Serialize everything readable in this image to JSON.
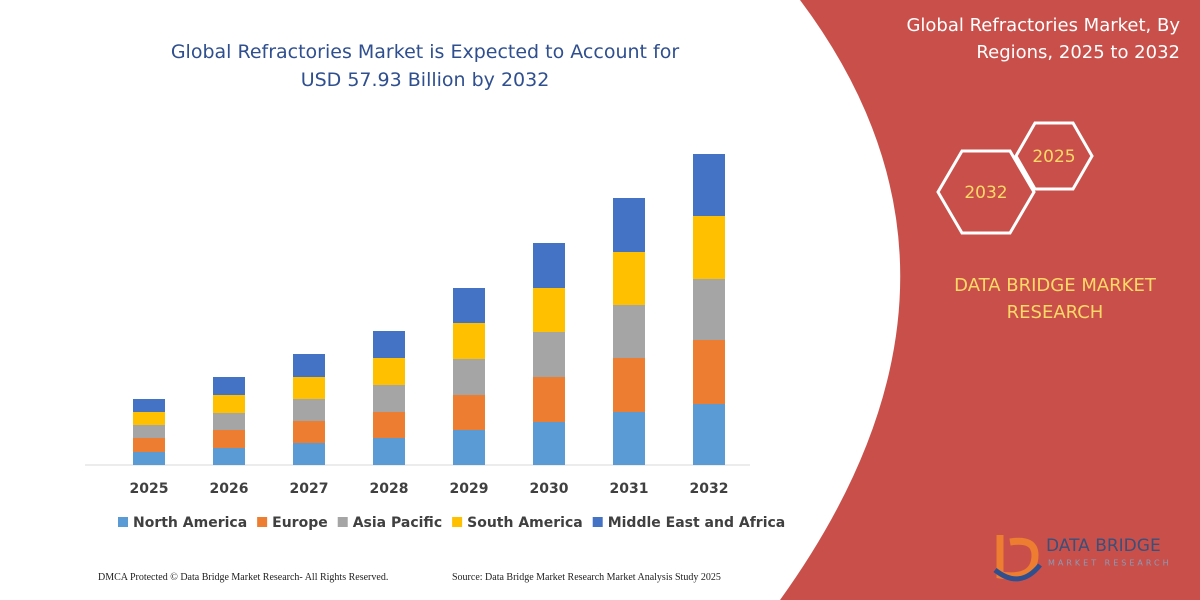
{
  "chart_data": {
    "type": "stacked-bar",
    "title": "Global Refractories Market is Expected to Account for USD 57.93 Billion by 2032",
    "categories": [
      "2025",
      "2026",
      "2027",
      "2028",
      "2029",
      "2030",
      "2031",
      "2032"
    ],
    "series": [
      {
        "name": "North America",
        "color": "#5b9bd5",
        "values": [
          13,
          17,
          22,
          27,
          35,
          43,
          53,
          61
        ]
      },
      {
        "name": "Europe",
        "color": "#ed7d31",
        "values": [
          14,
          18,
          22,
          26,
          35,
          45,
          54,
          64
        ]
      },
      {
        "name": "Asia Pacific",
        "color": "#a5a5a5",
        "values": [
          13,
          17,
          22,
          27,
          36,
          45,
          53,
          61
        ]
      },
      {
        "name": "South America",
        "color": "#ffc000",
        "values": [
          13,
          18,
          22,
          27,
          36,
          44,
          53,
          63
        ]
      },
      {
        "name": "Middle East and Africa",
        "color": "#4472c4",
        "values": [
          13,
          18,
          23,
          27,
          35,
          45,
          54,
          62
        ]
      }
    ]
  },
  "side_panel": {
    "title": "Global Refractories Market, By Regions, 2025 to 2032",
    "hexagons": [
      "2025",
      "2032"
    ],
    "brand": "DATA BRIDGE MARKET RESEARCH",
    "logo": "DATA BRIDGE",
    "logo_subtitle": "MARKET RESEARCH"
  },
  "footer": {
    "left": "DMCA Protected © Data Bridge Market Research-  All Rights Reserved.",
    "right": "Source: Data Bridge Market Research  Market Analysis Study 2025"
  }
}
